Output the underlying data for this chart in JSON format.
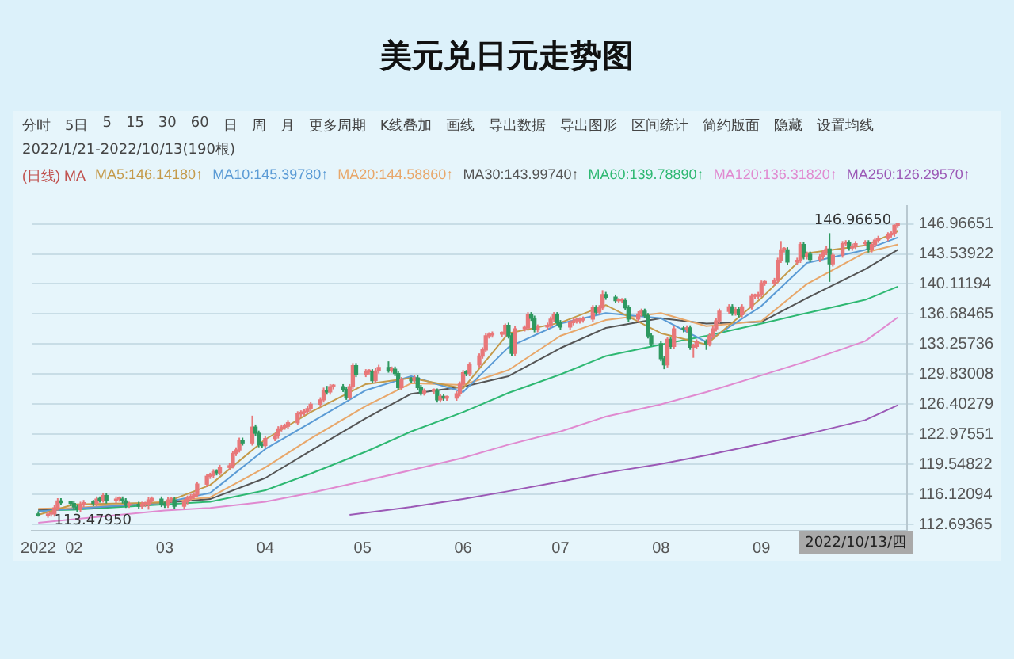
{
  "chart_data": {
    "type": "candlestick",
    "title": "美元兑日元走势图",
    "legend_title": "(日线) MA",
    "legend": "top",
    "grid": "y",
    "colors": [
      "#2e9960",
      "#e8787a",
      "#e8787a",
      "#e8787a",
      "#e8787a",
      "#2e9960",
      "#2e9960",
      "#2e9960",
      "#2e9960",
      "#e8787a",
      "#e8787a",
      "#2e9960",
      "#e8787a",
      "#2e9960",
      "#e8787a",
      "#2e9960",
      "#e8787a",
      "#e8787a",
      "#2e9960",
      "#2e9960",
      "#e8787a",
      "#2e9960",
      "#e8787a",
      "#e8787a",
      "#e8787a",
      "#e8787a",
      "#2e9960",
      "#2e9960",
      "#e8787a",
      "#e8787a",
      "#2e9960",
      "#e8787a",
      "#e8787a",
      "#e8787a",
      "#e8787a",
      "#e8787a",
      "#e8787a",
      "#e8787a",
      "#e8787a",
      "#2e9960",
      "#e8787a",
      "#e8787a",
      "#e8787a",
      "#e8787a",
      "#e8787a",
      "#2e9960",
      "#e8787a",
      "#2e9960",
      "#2e9960",
      "#2e9960",
      "#e8787a",
      "#e8787a",
      "#e8787a",
      "#e8787a",
      "#e8787a",
      "#e8787a",
      "#e8787a",
      "#e8787a",
      "#e8787a",
      "#e8787a",
      "#e8787a",
      "#e8787a",
      "#e8787a",
      "#2e9960",
      "#e8787a",
      "#e8787a",
      "#2e9960",
      "#2e9960",
      "#e8787a",
      "#e8787a",
      "#2e9960",
      "#e8787a",
      "#e8787a",
      "#2e9960",
      "#e8787a",
      "#e8787a",
      "#2e9960",
      "#e8787a",
      "#2e9960",
      "#2e9960",
      "#e8787a",
      "#2e9960",
      "#e8787a",
      "#2e9960",
      "#2e9960",
      "#e8787a",
      "#e8787a",
      "#2e9960",
      "#e8787a",
      "#2e9960",
      "#e8787a",
      "#e8787a",
      "#e8787a",
      "#e8787a",
      "#2e9960",
      "#e8787a",
      "#e8787a",
      "#e8787a",
      "#e8787a",
      "#e8787a",
      "#e8787a",
      "#e8787a",
      "#e8787a",
      "#2e9960",
      "#2e9960",
      "#e8787a",
      "#e8787a",
      "#e8787a",
      "#2e9960",
      "#2e9960",
      "#e8787a",
      "#e8787a",
      "#e8787a",
      "#e8787a",
      "#2e9960",
      "#2e9960",
      "#e8787a",
      "#e8787a",
      "#e8787a",
      "#e8787a",
      "#e8787a",
      "#e8787a",
      "#2e9960",
      "#e8787a",
      "#e8787a",
      "#2e9960",
      "#2e9960",
      "#e8787a",
      "#e8787a",
      "#2e9960",
      "#2e9960",
      "#e8787a",
      "#e8787a",
      "#2e9960",
      "#2e9960",
      "#2e9960",
      "#2e9960",
      "#2e9960",
      "#e8787a",
      "#2e9960",
      "#e8787a",
      "#2e9960",
      "#e8787a",
      "#2e9960",
      "#e8787a",
      "#e8787a",
      "#2e9960",
      "#e8787a",
      "#e8787a",
      "#e8787a",
      "#e8787a",
      "#e8787a",
      "#2e9960",
      "#e8787a",
      "#2e9960",
      "#e8787a",
      "#e8787a",
      "#e8787a",
      "#e8787a",
      "#e8787a",
      "#e8787a",
      "#e8787a",
      "#e8787a",
      "#e8787a",
      "#e8787a",
      "#2e9960",
      "#e8787a",
      "#e8787a",
      "#2e9960",
      "#e8787a",
      "#2e9960",
      "#e8787a",
      "#e8787a",
      "#e8787a",
      "#2e9960",
      "#e8787a",
      "#e8787a",
      "#e8787a",
      "#2e9960",
      "#e8787a",
      "#e8787a",
      "#e8787a",
      "#2e9960",
      "#e8787a",
      "#e8787a",
      "#e8787a",
      "#e8787a",
      "#e8787a",
      "#e8787a",
      "#e8787a"
    ],
    "xlim": [
      "2022-01-19",
      "2022-10-16"
    ],
    "xticks": [
      {
        "value": "2022-01-21",
        "label": "2022"
      },
      {
        "value": "2022-02-01",
        "label": "02"
      },
      {
        "value": "2022-03-01",
        "label": "03"
      },
      {
        "value": "2022-04-01",
        "label": "04"
      },
      {
        "value": "2022-05-01",
        "label": "05"
      },
      {
        "value": "2022-06-01",
        "label": "06"
      },
      {
        "value": "2022-07-01",
        "label": "07"
      },
      {
        "value": "2022-08-01",
        "label": "08"
      },
      {
        "value": "2022-09-01",
        "label": "09"
      }
    ],
    "ylim": [
      112,
      149
    ],
    "yticks": [
      112.69365,
      116.12094,
      119.54822,
      122.97551,
      126.40279,
      129.83008,
      133.25736,
      136.68465,
      140.11194,
      143.53922,
      146.96651
    ],
    "annotations": [
      "分时",
      "5日",
      "5",
      "15",
      "30",
      "60",
      "日",
      "周",
      "月",
      "更多周期",
      "K线叠加",
      "画线",
      "导出数据",
      "导出图形",
      "区间统计",
      "简约版面",
      "隐藏",
      "设置均线",
      "2022/1/21-2022/10/13(190根)",
      {
        "text": "146.96650",
        "x": "2022-10-13",
        "y": 146.9665
      },
      {
        "text": "113.47950",
        "x": "2022-01-24",
        "y": 113.4795
      },
      "2022/10/13/四"
    ],
    "x": [
      "2022-01-21",
      "2022-01-24",
      "2022-01-25",
      "2022-01-26",
      "2022-01-27",
      "2022-01-28",
      "2022-01-31",
      "2022-02-01",
      "2022-02-02",
      "2022-02-03",
      "2022-02-04",
      "2022-02-07",
      "2022-02-08",
      "2022-02-09",
      "2022-02-10",
      "2022-02-11",
      "2022-02-14",
      "2022-02-15",
      "2022-02-16",
      "2022-02-17",
      "2022-02-18",
      "2022-02-21",
      "2022-02-22",
      "2022-02-23",
      "2022-02-24",
      "2022-02-25",
      "2022-02-28",
      "2022-03-01",
      "2022-03-02",
      "2022-03-03",
      "2022-03-04",
      "2022-03-07",
      "2022-03-08",
      "2022-03-09",
      "2022-03-10",
      "2022-03-11",
      "2022-03-14",
      "2022-03-15",
      "2022-03-16",
      "2022-03-17",
      "2022-03-18",
      "2022-03-21",
      "2022-03-22",
      "2022-03-23",
      "2022-03-24",
      "2022-03-25",
      "2022-03-28",
      "2022-03-29",
      "2022-03-30",
      "2022-03-31",
      "2022-04-01",
      "2022-04-04",
      "2022-04-05",
      "2022-04-06",
      "2022-04-07",
      "2022-04-08",
      "2022-04-11",
      "2022-04-12",
      "2022-04-13",
      "2022-04-14",
      "2022-04-15",
      "2022-04-18",
      "2022-04-19",
      "2022-04-20",
      "2022-04-21",
      "2022-04-22",
      "2022-04-25",
      "2022-04-26",
      "2022-04-27",
      "2022-04-28",
      "2022-04-29",
      "2022-05-02",
      "2022-05-03",
      "2022-05-04",
      "2022-05-05",
      "2022-05-06",
      "2022-05-09",
      "2022-05-10",
      "2022-05-11",
      "2022-05-12",
      "2022-05-13",
      "2022-05-16",
      "2022-05-17",
      "2022-05-18",
      "2022-05-19",
      "2022-05-20",
      "2022-05-23",
      "2022-05-24",
      "2022-05-25",
      "2022-05-26",
      "2022-05-27",
      "2022-05-30",
      "2022-05-31",
      "2022-06-01",
      "2022-06-02",
      "2022-06-03",
      "2022-06-06",
      "2022-06-07",
      "2022-06-08",
      "2022-06-09",
      "2022-06-10",
      "2022-06-13",
      "2022-06-14",
      "2022-06-15",
      "2022-06-16",
      "2022-06-17",
      "2022-06-20",
      "2022-06-21",
      "2022-06-22",
      "2022-06-23",
      "2022-06-24",
      "2022-06-27",
      "2022-06-28",
      "2022-06-29",
      "2022-06-30",
      "2022-07-01",
      "2022-07-04",
      "2022-07-05",
      "2022-07-06",
      "2022-07-07",
      "2022-07-08",
      "2022-07-11",
      "2022-07-12",
      "2022-07-13",
      "2022-07-14",
      "2022-07-15",
      "2022-07-18",
      "2022-07-19",
      "2022-07-20",
      "2022-07-21",
      "2022-07-22",
      "2022-07-25",
      "2022-07-26",
      "2022-07-27",
      "2022-07-28",
      "2022-07-29",
      "2022-08-01",
      "2022-08-02",
      "2022-08-03",
      "2022-08-04",
      "2022-08-05",
      "2022-08-08",
      "2022-08-09",
      "2022-08-10",
      "2022-08-11",
      "2022-08-12",
      "2022-08-15",
      "2022-08-16",
      "2022-08-17",
      "2022-08-18",
      "2022-08-19",
      "2022-08-22",
      "2022-08-23",
      "2022-08-24",
      "2022-08-25",
      "2022-08-26",
      "2022-08-29",
      "2022-08-30",
      "2022-08-31",
      "2022-09-01",
      "2022-09-02",
      "2022-09-05",
      "2022-09-06",
      "2022-09-07",
      "2022-09-08",
      "2022-09-09",
      "2022-09-12",
      "2022-09-13",
      "2022-09-14",
      "2022-09-15",
      "2022-09-16",
      "2022-09-19",
      "2022-09-20",
      "2022-09-21",
      "2022-09-22",
      "2022-09-23",
      "2022-09-26",
      "2022-09-27",
      "2022-09-28",
      "2022-09-29",
      "2022-09-30",
      "2022-10-03",
      "2022-10-04",
      "2022-10-05",
      "2022-10-06",
      "2022-10-07",
      "2022-10-10",
      "2022-10-11",
      "2022-10-12",
      "2022-10-13"
    ],
    "ohlc": [
      [
        113.9,
        114.2,
        113.6,
        113.7
      ],
      [
        113.7,
        114.2,
        113.4795,
        113.9
      ],
      [
        113.9,
        114.2,
        113.6,
        113.9
      ],
      [
        113.9,
        114.9,
        113.6,
        114.6
      ],
      [
        114.6,
        115.7,
        114.3,
        115.4
      ],
      [
        115.4,
        115.7,
        114.9,
        115.2
      ],
      [
        115.2,
        115.4,
        114.8,
        115.1
      ],
      [
        115.1,
        115.4,
        114.4,
        114.7
      ],
      [
        114.7,
        115.0,
        114.1,
        114.4
      ],
      [
        114.4,
        115.3,
        114.1,
        115.0
      ],
      [
        115.0,
        115.5,
        114.7,
        115.2
      ],
      [
        115.2,
        115.5,
        114.8,
        115.1
      ],
      [
        115.1,
        115.9,
        114.8,
        115.6
      ],
      [
        115.6,
        115.9,
        115.2,
        115.5
      ],
      [
        115.5,
        116.3,
        115.2,
        116.0
      ],
      [
        116.0,
        116.3,
        115.1,
        115.4
      ],
      [
        115.4,
        115.9,
        115.1,
        115.6
      ],
      [
        115.6,
        115.9,
        115.3,
        115.6
      ],
      [
        115.6,
        115.9,
        115.1,
        115.4
      ],
      [
        115.4,
        115.7,
        114.6,
        114.9
      ],
      [
        114.9,
        115.3,
        114.6,
        115.0
      ],
      [
        115.0,
        115.3,
        114.5,
        114.8
      ],
      [
        114.8,
        115.3,
        114.5,
        115.0
      ],
      [
        115.0,
        115.3,
        114.7,
        115.0
      ],
      [
        115.0,
        115.8,
        114.4,
        115.5
      ],
      [
        115.5,
        115.9,
        115.2,
        115.6
      ],
      [
        115.6,
        115.9,
        114.7,
        115.0
      ],
      [
        115.0,
        115.3,
        114.6,
        114.9
      ],
      [
        114.9,
        115.8,
        114.6,
        115.5
      ],
      [
        115.5,
        115.8,
        115.2,
        115.5
      ],
      [
        115.5,
        115.8,
        114.5,
        114.8
      ],
      [
        114.8,
        115.6,
        114.5,
        115.3
      ],
      [
        115.3,
        116.0,
        115.0,
        115.7
      ],
      [
        115.7,
        116.2,
        115.4,
        115.9
      ],
      [
        115.9,
        116.4,
        115.6,
        116.1
      ],
      [
        116.1,
        117.6,
        115.8,
        117.3
      ],
      [
        117.3,
        118.5,
        117.0,
        118.2
      ],
      [
        118.2,
        118.6,
        117.9,
        118.3
      ],
      [
        118.3,
        119.0,
        118.0,
        118.7
      ],
      [
        118.7,
        119.0,
        118.3,
        118.6
      ],
      [
        118.6,
        119.5,
        118.3,
        119.2
      ],
      [
        119.2,
        119.7,
        118.9,
        119.4
      ],
      [
        119.4,
        121.1,
        119.1,
        120.8
      ],
      [
        120.8,
        121.5,
        120.5,
        121.2
      ],
      [
        121.2,
        122.6,
        120.9,
        122.3
      ],
      [
        122.3,
        122.6,
        121.7,
        122.0
      ],
      [
        122.0,
        125.1,
        121.7,
        123.8
      ],
      [
        123.8,
        124.1,
        122.8,
        123.1
      ],
      [
        123.1,
        123.4,
        121.5,
        121.8
      ],
      [
        121.8,
        122.1,
        121.4,
        121.7
      ],
      [
        121.7,
        122.8,
        121.4,
        122.5
      ],
      [
        122.5,
        123.1,
        122.2,
        122.8
      ],
      [
        122.8,
        123.9,
        122.5,
        123.6
      ],
      [
        123.6,
        124.1,
        123.3,
        123.8
      ],
      [
        123.8,
        124.2,
        123.5,
        123.9
      ],
      [
        123.9,
        124.6,
        123.6,
        124.3
      ],
      [
        124.3,
        125.6,
        124.0,
        125.3
      ],
      [
        125.3,
        125.7,
        125.0,
        125.4
      ],
      [
        125.4,
        125.9,
        125.1,
        125.6
      ],
      [
        125.6,
        126.2,
        125.3,
        125.9
      ],
      [
        125.9,
        126.7,
        125.6,
        126.4
      ],
      [
        126.4,
        127.2,
        126.1,
        126.9
      ],
      [
        126.9,
        128.3,
        126.6,
        128.0
      ],
      [
        128.0,
        128.5,
        127.5,
        127.8
      ],
      [
        127.8,
        128.7,
        127.5,
        128.4
      ],
      [
        128.4,
        128.7,
        128.1,
        128.4
      ],
      [
        128.4,
        128.7,
        127.8,
        128.1
      ],
      [
        128.1,
        128.4,
        126.9,
        127.2
      ],
      [
        127.2,
        128.7,
        126.9,
        128.4
      ],
      [
        128.4,
        131.1,
        128.1,
        130.8
      ],
      [
        130.8,
        131.1,
        129.5,
        129.8
      ],
      [
        129.8,
        130.4,
        129.5,
        130.1
      ],
      [
        130.1,
        130.4,
        129.8,
        130.1
      ],
      [
        130.1,
        130.4,
        128.8,
        129.1
      ],
      [
        129.1,
        130.5,
        128.8,
        130.2
      ],
      [
        130.2,
        130.9,
        129.9,
        130.6
      ],
      [
        130.6,
        131.3,
        130.0,
        130.3
      ],
      [
        130.3,
        130.7,
        130.0,
        130.4
      ],
      [
        130.4,
        130.7,
        129.6,
        129.9
      ],
      [
        129.9,
        130.2,
        128.0,
        128.3
      ],
      [
        128.3,
        129.5,
        128.0,
        129.2
      ],
      [
        129.2,
        129.5,
        128.8,
        129.1
      ],
      [
        129.1,
        129.7,
        128.8,
        129.4
      ],
      [
        129.4,
        129.7,
        128.0,
        128.3
      ],
      [
        128.3,
        128.6,
        127.4,
        127.7
      ],
      [
        127.7,
        128.2,
        127.4,
        127.9
      ],
      [
        127.9,
        128.2,
        127.6,
        127.9
      ],
      [
        127.9,
        128.2,
        126.6,
        126.9
      ],
      [
        126.9,
        127.6,
        126.6,
        127.3
      ],
      [
        127.3,
        127.6,
        126.8,
        127.1
      ],
      [
        127.1,
        127.4,
        126.8,
        127.1
      ],
      [
        127.1,
        127.9,
        126.8,
        127.6
      ],
      [
        127.6,
        129.0,
        127.3,
        128.7
      ],
      [
        128.7,
        130.3,
        128.4,
        130.0
      ],
      [
        130.0,
        130.3,
        129.6,
        129.9
      ],
      [
        129.9,
        131.2,
        129.6,
        130.9
      ],
      [
        130.9,
        132.2,
        130.6,
        131.9
      ],
      [
        131.9,
        132.9,
        131.6,
        132.6
      ],
      [
        132.6,
        134.5,
        132.3,
        134.2
      ],
      [
        134.2,
        134.6,
        133.9,
        134.3
      ],
      [
        134.3,
        134.7,
        134.0,
        134.4
      ],
      [
        134.4,
        134.7,
        134.1,
        134.4
      ],
      [
        134.4,
        135.6,
        134.1,
        135.4
      ],
      [
        135.4,
        135.7,
        133.9,
        134.2
      ],
      [
        134.2,
        134.5,
        131.9,
        132.2
      ],
      [
        132.2,
        135.3,
        131.9,
        135.0
      ],
      [
        135.0,
        135.4,
        134.7,
        135.1
      ],
      [
        135.1,
        136.9,
        134.8,
        136.6
      ],
      [
        136.6,
        136.9,
        135.9,
        136.2
      ],
      [
        136.2,
        136.5,
        134.6,
        134.9
      ],
      [
        134.9,
        135.5,
        134.6,
        135.2
      ],
      [
        135.2,
        135.7,
        134.9,
        135.4
      ],
      [
        135.4,
        136.4,
        135.1,
        136.1
      ],
      [
        136.1,
        136.9,
        135.8,
        136.6
      ],
      [
        136.6,
        136.9,
        135.4,
        135.7
      ],
      [
        135.7,
        136.0,
        134.9,
        135.2
      ],
      [
        135.2,
        136.0,
        134.9,
        135.7
      ],
      [
        135.7,
        136.2,
        135.4,
        135.9
      ],
      [
        135.9,
        136.2,
        135.6,
        135.9
      ],
      [
        135.9,
        136.3,
        135.6,
        136.0
      ],
      [
        136.0,
        136.4,
        135.7,
        136.1
      ],
      [
        136.1,
        137.7,
        135.8,
        137.4
      ],
      [
        137.4,
        137.7,
        136.6,
        136.9
      ],
      [
        136.9,
        137.7,
        136.6,
        137.4
      ],
      [
        137.4,
        139.4,
        137.1,
        138.9
      ],
      [
        138.9,
        139.2,
        138.3,
        138.6
      ],
      [
        138.6,
        138.9,
        137.9,
        138.2
      ],
      [
        138.2,
        138.5,
        137.9,
        138.2
      ],
      [
        138.2,
        138.5,
        137.9,
        138.2
      ],
      [
        138.2,
        138.5,
        137.1,
        137.4
      ],
      [
        137.4,
        137.7,
        135.8,
        136.1
      ],
      [
        136.1,
        137.0,
        135.8,
        136.7
      ],
      [
        136.7,
        137.3,
        136.4,
        137.0
      ],
      [
        137.0,
        137.3,
        136.2,
        136.5
      ],
      [
        136.5,
        136.8,
        133.9,
        134.2
      ],
      [
        134.2,
        134.5,
        133.0,
        133.3
      ],
      [
        133.3,
        133.6,
        131.3,
        131.6
      ],
      [
        131.6,
        131.9,
        130.4,
        130.9
      ],
      [
        130.9,
        134.1,
        130.6,
        133.8
      ],
      [
        133.8,
        134.1,
        132.7,
        133.0
      ],
      [
        133.0,
        135.3,
        132.7,
        135.0
      ],
      [
        135.0,
        135.3,
        134.6,
        134.9
      ],
      [
        134.9,
        135.4,
        134.6,
        135.1
      ],
      [
        135.1,
        135.4,
        132.6,
        132.9
      ],
      [
        132.9,
        133.3,
        131.7,
        133.0
      ],
      [
        133.0,
        133.8,
        132.7,
        133.5
      ],
      [
        133.5,
        133.8,
        132.6,
        133.3
      ],
      [
        133.3,
        134.5,
        133.0,
        134.2
      ],
      [
        134.2,
        135.3,
        133.9,
        135.0
      ],
      [
        135.0,
        136.2,
        134.7,
        135.9
      ],
      [
        135.9,
        137.3,
        135.6,
        137.0
      ],
      [
        137.0,
        137.8,
        136.7,
        137.5
      ],
      [
        137.5,
        137.8,
        136.5,
        136.8
      ],
      [
        136.8,
        137.5,
        136.5,
        137.2
      ],
      [
        137.2,
        137.5,
        136.3,
        136.6
      ],
      [
        136.6,
        137.8,
        136.3,
        137.5
      ],
      [
        137.5,
        139.0,
        137.2,
        138.7
      ],
      [
        138.7,
        139.0,
        138.4,
        138.7
      ],
      [
        138.7,
        139.2,
        138.4,
        138.9
      ],
      [
        138.9,
        140.5,
        138.6,
        140.2
      ],
      [
        140.2,
        140.5,
        139.9,
        140.2
      ],
      [
        140.2,
        140.8,
        139.9,
        140.5
      ],
      [
        140.5,
        143.1,
        140.2,
        142.8
      ],
      [
        142.8,
        145.0,
        142.5,
        144.0
      ],
      [
        144.0,
        144.3,
        143.7,
        144.0
      ],
      [
        144.0,
        144.3,
        142.3,
        142.6
      ],
      [
        142.6,
        143.1,
        142.3,
        142.8
      ],
      [
        142.8,
        144.9,
        142.5,
        144.6
      ],
      [
        144.6,
        144.9,
        142.9,
        143.2
      ],
      [
        143.2,
        143.8,
        142.9,
        143.5
      ],
      [
        143.5,
        143.8,
        142.6,
        142.9
      ],
      [
        142.9,
        143.5,
        142.6,
        143.2
      ],
      [
        143.2,
        144.0,
        142.9,
        143.7
      ],
      [
        143.7,
        144.4,
        143.4,
        144.1
      ],
      [
        144.1,
        145.9,
        140.35,
        142.4
      ],
      [
        142.4,
        143.7,
        142.1,
        143.4
      ],
      [
        143.4,
        145.0,
        143.1,
        144.7
      ],
      [
        144.7,
        145.1,
        144.4,
        144.8
      ],
      [
        144.8,
        145.1,
        143.9,
        144.2
      ],
      [
        144.2,
        144.7,
        143.9,
        144.4
      ],
      [
        144.4,
        145.0,
        144.1,
        144.7
      ],
      [
        144.7,
        145.1,
        144.4,
        144.8
      ],
      [
        144.8,
        145.1,
        143.7,
        144.0
      ],
      [
        144.0,
        144.9,
        143.7,
        144.6
      ],
      [
        144.6,
        145.4,
        144.3,
        145.1
      ],
      [
        145.1,
        145.6,
        144.8,
        145.3
      ],
      [
        145.3,
        146.0,
        145.0,
        145.7
      ],
      [
        145.7,
        146.1,
        145.4,
        145.8
      ],
      [
        145.8,
        146.9,
        145.5,
        146.8
      ],
      [
        146.8,
        146.9665,
        146.5,
        146.9
      ]
    ],
    "series": [
      {
        "type": "line",
        "name": "MA5:146.14180↑",
        "color": "#c49a4a",
        "x": [
          "2022-01-21",
          "2022-02-01",
          "2022-03-01",
          "2022-03-15",
          "2022-04-01",
          "2022-04-15",
          "2022-05-02",
          "2022-05-16",
          "2022-06-01",
          "2022-06-15",
          "2022-07-01",
          "2022-07-15",
          "2022-08-01",
          "2022-08-15",
          "2022-09-01",
          "2022-09-15",
          "2022-10-03",
          "2022-10-13"
        ],
        "values": [
          113.8,
          115.0,
          115.2,
          117.2,
          122.4,
          125.5,
          128.7,
          129.4,
          128.2,
          134.5,
          135.7,
          137.7,
          134.5,
          133.2,
          138.5,
          143.6,
          144.5,
          146.1
        ]
      },
      {
        "type": "line",
        "name": "MA10:145.39780↑",
        "color": "#5b9bd5",
        "x": [
          "2022-01-21",
          "2022-02-01",
          "2022-03-01",
          "2022-03-15",
          "2022-04-01",
          "2022-04-15",
          "2022-05-02",
          "2022-05-16",
          "2022-06-01",
          "2022-06-15",
          "2022-07-01",
          "2022-07-15",
          "2022-08-01",
          "2022-08-15",
          "2022-09-01",
          "2022-09-15",
          "2022-10-03",
          "2022-10-13"
        ],
        "values": [
          114.2,
          114.5,
          115.2,
          116.3,
          121.3,
          124.3,
          128.0,
          129.6,
          127.8,
          132.9,
          135.6,
          136.8,
          136.2,
          133.5,
          137.6,
          142.5,
          144.0,
          145.4
        ]
      },
      {
        "type": "line",
        "name": "MA20:144.58860↑",
        "color": "#e8a76a",
        "x": [
          "2022-01-21",
          "2022-02-01",
          "2022-03-01",
          "2022-03-15",
          "2022-04-01",
          "2022-04-15",
          "2022-05-02",
          "2022-05-16",
          "2022-06-01",
          "2022-06-15",
          "2022-07-01",
          "2022-07-15",
          "2022-08-01",
          "2022-08-15",
          "2022-09-01",
          "2022-09-15",
          "2022-10-03",
          "2022-10-13"
        ],
        "values": [
          114.5,
          114.6,
          115.3,
          115.8,
          119.2,
          122.5,
          126.2,
          128.8,
          128.6,
          130.3,
          134.2,
          136.0,
          136.8,
          135.3,
          135.9,
          140.1,
          143.7,
          144.6
        ]
      },
      {
        "type": "line",
        "name": "MA30:143.99740↑",
        "color": "#555555",
        "x": [
          "2022-01-21",
          "2022-02-01",
          "2022-03-01",
          "2022-03-15",
          "2022-04-01",
          "2022-04-15",
          "2022-05-02",
          "2022-05-16",
          "2022-06-01",
          "2022-06-15",
          "2022-07-01",
          "2022-07-15",
          "2022-08-01",
          "2022-08-15",
          "2022-09-01",
          "2022-09-15",
          "2022-10-03",
          "2022-10-13"
        ],
        "values": [
          114.4,
          114.5,
          115.2,
          115.6,
          118.0,
          121.1,
          124.8,
          127.6,
          128.4,
          129.6,
          132.8,
          135.1,
          136.2,
          135.6,
          135.8,
          138.5,
          141.8,
          144.0
        ]
      },
      {
        "type": "line",
        "name": "MA60:139.78890↑",
        "color": "#2eb872",
        "x": [
          "2022-01-21",
          "2022-02-01",
          "2022-03-01",
          "2022-03-15",
          "2022-04-01",
          "2022-04-15",
          "2022-05-02",
          "2022-05-16",
          "2022-06-01",
          "2022-06-15",
          "2022-07-01",
          "2022-07-15",
          "2022-08-01",
          "2022-08-15",
          "2022-09-01",
          "2022-09-15",
          "2022-10-03",
          "2022-10-13"
        ],
        "values": [
          114.3,
          114.4,
          115.0,
          115.3,
          116.6,
          118.5,
          121.0,
          123.3,
          125.5,
          127.7,
          129.8,
          131.9,
          133.2,
          134.2,
          135.6,
          136.8,
          138.3,
          139.8
        ]
      },
      {
        "type": "line",
        "name": "MA120:136.31820↑",
        "color": "#e08ad0",
        "x": [
          "2022-01-21",
          "2022-02-01",
          "2022-03-01",
          "2022-03-15",
          "2022-04-01",
          "2022-04-15",
          "2022-05-02",
          "2022-05-16",
          "2022-06-01",
          "2022-06-15",
          "2022-07-01",
          "2022-07-15",
          "2022-08-01",
          "2022-08-15",
          "2022-09-01",
          "2022-09-15",
          "2022-10-03",
          "2022-10-13"
        ],
        "values": [
          112.9,
          113.3,
          114.3,
          114.6,
          115.3,
          116.3,
          117.7,
          118.9,
          120.3,
          121.8,
          123.3,
          125.0,
          126.4,
          127.8,
          129.7,
          131.3,
          133.6,
          136.3
        ]
      },
      {
        "type": "line",
        "name": "MA250:126.29570↑",
        "color": "#9b59b6",
        "x": [
          "2022-04-27",
          "2022-05-16",
          "2022-06-01",
          "2022-06-15",
          "2022-07-01",
          "2022-07-15",
          "2022-08-01",
          "2022-08-15",
          "2022-09-01",
          "2022-09-15",
          "2022-10-03",
          "2022-10-13"
        ],
        "values": [
          113.8,
          114.7,
          115.6,
          116.5,
          117.6,
          118.6,
          119.6,
          120.6,
          121.9,
          123.0,
          124.6,
          126.3
        ]
      }
    ]
  }
}
